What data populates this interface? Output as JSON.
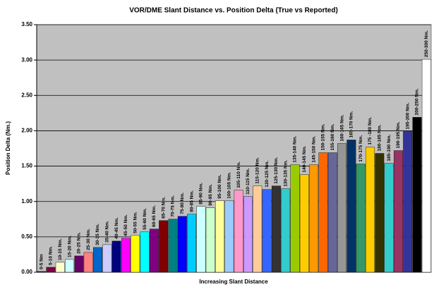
{
  "chart_data": {
    "type": "bar",
    "title": "VOR/DME Slant Distance vs. Position Delta (True vs Reported)",
    "x_label": "Increasing Slant Distance",
    "y_label": "Position Delta (Nm.)",
    "categories": [
      "0-5 Nm",
      "5-10 Nm.",
      "10-15 Nm.",
      "15-20 Nm.",
      "20-25 Nm.",
      "25-30 Nm.",
      "30-35 Nm.",
      "35-40 Nm.",
      "40-45 Nm.",
      "45-50 Nm.",
      "50-55 Nm.",
      "55-60 Nm.",
      "60-65 Nm.",
      "65-70 Nm.",
      "70-75 Nm.",
      "75-80 Nm.",
      "80-85 Nm.",
      "85-90 Nm.",
      "90-95 Nm.",
      "95-100 Nm.",
      "100-105 Nm.",
      "105-110 Nm.",
      "110-115 Nm.",
      "115-120 Nm.",
      "120-125 Nm.",
      "125-130 Nm.",
      "130-135 Nm.",
      "135-140 Nm.",
      "140-145 Nm.",
      "145-150 Nm.",
      "150-155 Nm.",
      "155-160 Nm.",
      "160-165 Nm.",
      "165-170 Nm.",
      "170-175 Nm.",
      "175 -180 Nm.",
      "180-185 Nm.",
      "185-190 Nm.",
      "190-195 Nm.",
      "195-200 Nm.",
      "200-250 Nm.",
      "250-300 Nm."
    ],
    "values": [
      0.01,
      0.07,
      0.14,
      0.18,
      0.23,
      0.28,
      0.35,
      0.39,
      0.44,
      0.48,
      0.52,
      0.57,
      0.61,
      0.73,
      0.75,
      0.79,
      0.82,
      0.93,
      0.91,
      1.01,
      1.01,
      1.16,
      1.07,
      1.22,
      1.17,
      1.22,
      1.18,
      1.52,
      1.38,
      1.52,
      1.69,
      1.69,
      1.82,
      1.87,
      1.53,
      1.77,
      1.68,
      1.54,
      1.72,
      1.99,
      2.19,
      3.01
    ],
    "colors": [
      "#000080",
      "#800040",
      "#ffffcc",
      "#ccffff",
      "#660066",
      "#ff8080",
      "#0066cc",
      "#ccccff",
      "#000080",
      "#ff00ff",
      "#ffff00",
      "#00ffff",
      "#800080",
      "#800000",
      "#008080",
      "#0000ff",
      "#00ccff",
      "#ccffff",
      "#ccffcc",
      "#ffff99",
      "#99ccff",
      "#ff99cc",
      "#cc99ff",
      "#ffcc99",
      "#3366ff",
      "#333333",
      "#33cccc",
      "#99cc00",
      "#ffcc00",
      "#ff9900",
      "#ff6600",
      "#666699",
      "#969696",
      "#003366",
      "#339966",
      "#ffcc00",
      "#333300",
      "#33cccc",
      "#993366",
      "#333399",
      "#000000",
      "#ffffff"
    ],
    "ylim": [
      0,
      3.5
    ],
    "yticks": [
      {
        "value": 0,
        "label": "0.00"
      },
      {
        "value": 0.5,
        "label": "0.50"
      },
      {
        "value": 1,
        "label": "1.00"
      },
      {
        "value": 1.5,
        "label": "1.50"
      },
      {
        "value": 2,
        "label": "2.00"
      },
      {
        "value": 2.5,
        "label": "2.50"
      },
      {
        "value": 3,
        "label": "3.00"
      },
      {
        "value": 3.5,
        "label": "3.50"
      }
    ],
    "grid": true
  }
}
